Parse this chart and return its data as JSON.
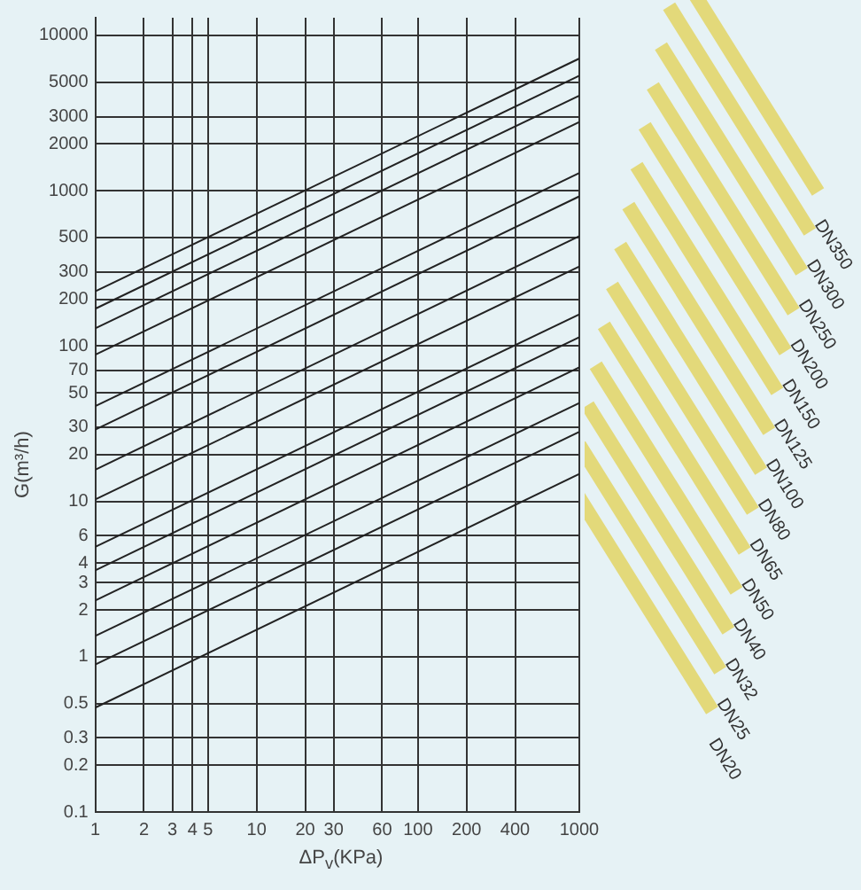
{
  "chart_data": {
    "type": "line",
    "xlabel": "ΔP$_{v}$(KPa)",
    "ylabel": "G(m³/h)",
    "log": "xy",
    "grid": true,
    "xlim": [
      1,
      1000
    ],
    "ylim": [
      0.1,
      13000
    ],
    "xticks": [
      1,
      2,
      3,
      4,
      5,
      10,
      20,
      30,
      60,
      100,
      200,
      400,
      1000
    ],
    "yticks": [
      0.1,
      0.2,
      0.3,
      0.5,
      1,
      2,
      3,
      4,
      6,
      10,
      20,
      30,
      50,
      70,
      100,
      200,
      300,
      500,
      1000,
      2000,
      3000,
      5000,
      10000
    ],
    "x": [
      1,
      1000
    ],
    "series": [
      {
        "name": "DN350",
        "color": "#222222",
        "values": [
          225,
          7100
        ]
      },
      {
        "name": "DN300",
        "color": "#222222",
        "values": [
          174,
          5500
        ]
      },
      {
        "name": "DN250",
        "color": "#222222",
        "values": [
          130,
          4100
        ]
      },
      {
        "name": "DN200",
        "color": "#222222",
        "values": [
          88,
          2770
        ]
      },
      {
        "name": "DN150",
        "color": "#222222",
        "values": [
          41,
          1300
        ]
      },
      {
        "name": "DN125",
        "color": "#222222",
        "values": [
          29,
          920
        ]
      },
      {
        "name": "DN100",
        "color": "#222222",
        "values": [
          16,
          510
        ]
      },
      {
        "name": "DN80",
        "color": "#222222",
        "values": [
          10.3,
          325
        ]
      },
      {
        "name": "DN65",
        "color": "#222222",
        "values": [
          5.1,
          160
        ]
      },
      {
        "name": "DN50",
        "color": "#222222",
        "values": [
          3.6,
          114
        ]
      },
      {
        "name": "DN40",
        "color": "#222222",
        "values": [
          2.3,
          73
        ]
      },
      {
        "name": "DN32",
        "color": "#222222",
        "values": [
          1.36,
          43
        ]
      },
      {
        "name": "DN25",
        "color": "#222222",
        "values": [
          0.89,
          28
        ]
      },
      {
        "name": "DN20",
        "color": "#222222",
        "values": [
          0.47,
          15
        ]
      }
    ]
  }
}
